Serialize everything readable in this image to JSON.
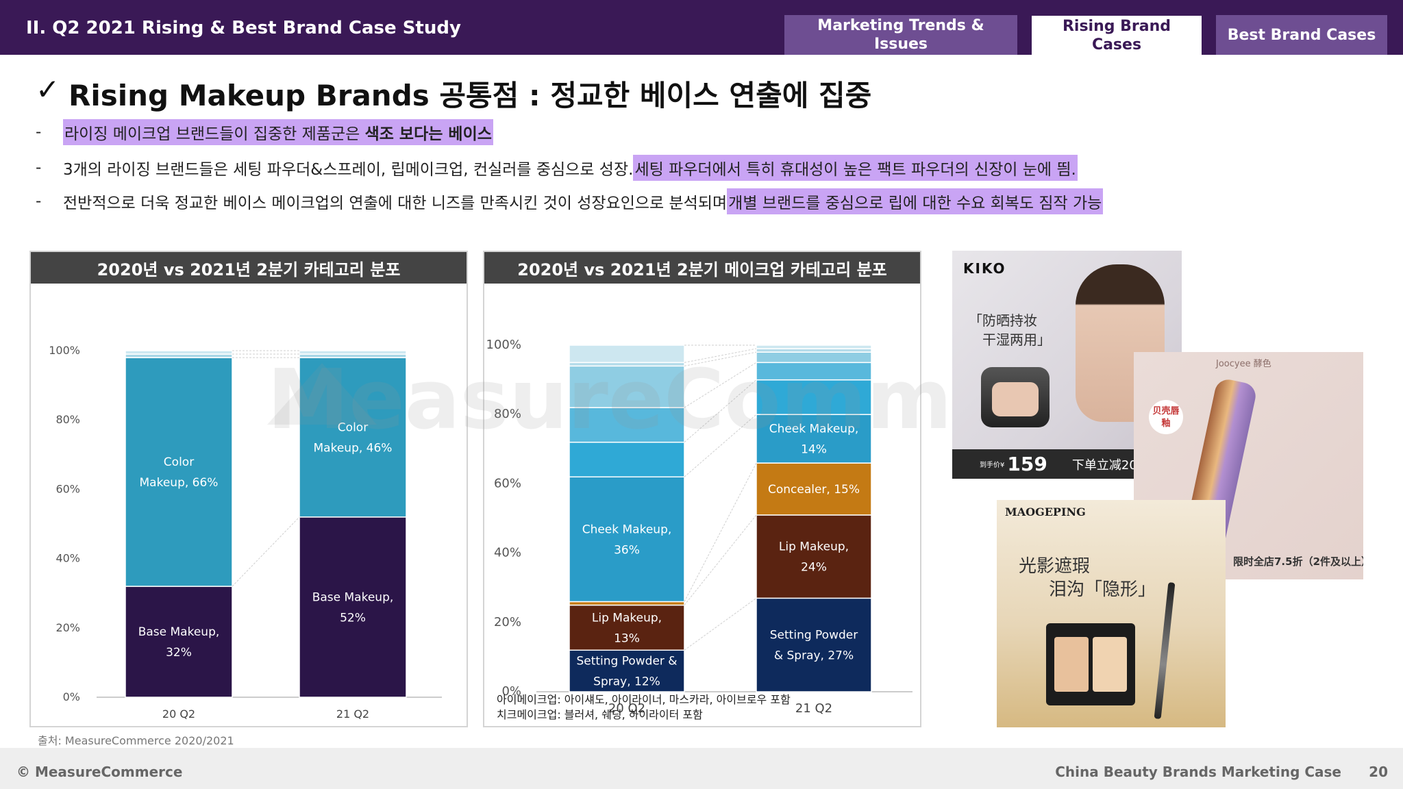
{
  "header": {
    "section_title": "II. Q2 2021 Rising & Best Brand Case Study",
    "tabs": [
      {
        "label": "Marketing Trends & Issues"
      },
      {
        "label": "Rising Brand Cases"
      },
      {
        "label": "Best Brand Cases"
      }
    ],
    "active_tab": "Rising Brand Cases"
  },
  "headline": {
    "check": "✓",
    "text": "Rising Makeup Brands 공통점 : 정교한 베이스 연출에 집중"
  },
  "bullets": [
    {
      "dash": "-",
      "plain": "",
      "highlight_a": "라이징 메이크업 브랜드들이 집중한 제품군은 ",
      "highlight_b": "색조 보다는 베이스"
    },
    {
      "dash": "-",
      "plain": "3개의 라이징 브랜드들은 세팅 파우더&스프레이, 립메이크업, 컨실러를 중심으로 성장. ",
      "highlight": "세팅 파우더에서 특히 휴대성이 높은 팩트 파우더의 신장이 눈에 띔."
    },
    {
      "dash": "-",
      "plain": "전반적으로 더욱 정교한 베이스 메이크업의 연출에 대한 니즈를 만족시킨 것이 성장요인으로 분석되며 ",
      "highlight": "개별 브랜드를 중심으로 립에 대한 수요 회복도 짐작 가능"
    }
  ],
  "watermark": "MeasureCommerce",
  "chart_data": [
    {
      "type": "bar",
      "stacked": true,
      "title": "2020년 vs 2021년 2분기 카테고리 분포",
      "categories": [
        "20 Q2",
        "21 Q2"
      ],
      "ylim": [
        0,
        100
      ],
      "yticks": [
        "0%",
        "20%",
        "40%",
        "60%",
        "80%",
        "100%"
      ],
      "series": [
        {
          "name": "Base Makeup",
          "values": [
            32,
            52
          ],
          "color": "#2b1548",
          "labels": [
            "Base Makeup,|32%",
            "Base Makeup,|52%"
          ]
        },
        {
          "name": "Color Makeup",
          "values": [
            66,
            46
          ],
          "color": "#2e9bbd",
          "labels": [
            "Color|Makeup, 66%",
            "Color|Makeup, 46%"
          ]
        },
        {
          "name": "",
          "values": [
            1,
            1
          ],
          "color": "#a8d6e6",
          "labels": [
            "",
            ""
          ]
        },
        {
          "name": "",
          "values": [
            1,
            1
          ],
          "color": "#cde8f1",
          "labels": [
            "",
            ""
          ]
        }
      ],
      "grid": false,
      "legend": "none"
    },
    {
      "type": "bar",
      "stacked": true,
      "title": "2020년 vs 2021년 2분기 메이크업 카테고리 분포",
      "categories": [
        "20 Q2",
        "21 Q2"
      ],
      "ylim": [
        0,
        100
      ],
      "yticks": [
        "0%",
        "20%",
        "40%",
        "60%",
        "80%",
        "100%"
      ],
      "series": [
        {
          "name": "Setting Powder & Spray",
          "values": [
            12,
            27
          ],
          "color": "#0e2a5c",
          "labels": [
            "Setting Powder &|Spray, 12%",
            "Setting Powder|& Spray, 27%"
          ]
        },
        {
          "name": "Lip Makeup",
          "values": [
            13,
            24
          ],
          "color": "#5a2311",
          "labels": [
            "Lip Makeup,|13%",
            "Lip Makeup,|24%"
          ]
        },
        {
          "name": "Concealer",
          "values": [
            1,
            15
          ],
          "color": "#c47a14",
          "labels": [
            "",
            "Concealer, 15%"
          ]
        },
        {
          "name": "Cheek Makeup",
          "values": [
            36,
            14
          ],
          "color": "#2a9cc8",
          "labels": [
            "Cheek Makeup,|36%",
            "Cheek Makeup,|14%"
          ]
        },
        {
          "name": "",
          "values": [
            10,
            10
          ],
          "color": "#2fa9d6",
          "labels": [
            "",
            ""
          ]
        },
        {
          "name": "",
          "values": [
            10,
            5
          ],
          "color": "#58b8dc",
          "labels": [
            "",
            ""
          ]
        },
        {
          "name": "",
          "values": [
            12,
            3
          ],
          "color": "#8fcde3",
          "labels": [
            "",
            ""
          ]
        },
        {
          "name": "",
          "values": [
            1,
            1
          ],
          "color": "#b5dcea",
          "labels": [
            "",
            ""
          ]
        },
        {
          "name": "",
          "values": [
            5,
            1
          ],
          "color": "#cde7f0",
          "labels": [
            "",
            ""
          ]
        }
      ],
      "grid": false,
      "legend": "none",
      "footnotes": [
        "아이메이크업: 아이섀도, 아이라이너, 마스카라, 아이브로우 포함",
        "치크메이크업: 블러셔, 쉐딩, 하이라이터 포함"
      ]
    }
  ],
  "source": "출처: MeasureCommerce 2020/2021",
  "ads": {
    "kiko": {
      "brand": "KIKO",
      "tagline_1": "「防晒持妆",
      "tagline_2": "干湿两用」",
      "price_label": "到手价¥",
      "price": "159",
      "discount": "下单立减20"
    },
    "joocyee": {
      "brand": "Joocyee 酵色",
      "badge": "贝壳唇釉",
      "promo": "限时全店7.5折（2件及以上）"
    },
    "maogeping": {
      "brand": "MAOGEPING",
      "tagline_1": "光影遮瑕",
      "tagline_2": "泪沟「隐形」"
    }
  },
  "footer": {
    "copyright": "© MeasureCommerce",
    "title": "China Beauty Brands Marketing Case",
    "page": "20"
  }
}
